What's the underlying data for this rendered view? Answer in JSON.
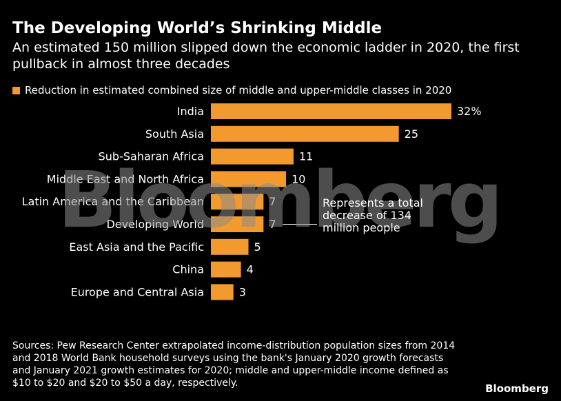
{
  "header": {
    "title": "The Developing World’s Shrinking Middle",
    "subtitle": "An estimated 150 million slipped down the economic ladder in 2020, the first pullback in almost three decades"
  },
  "chart_data": {
    "type": "bar",
    "orientation": "horizontal",
    "legend": "Reduction in estimated combined size of middle and upper-middle classes in 2020",
    "legend_placement": "top-left",
    "categories": [
      "India",
      "South Asia",
      "Sub-Saharan Africa",
      "Middle East and North Africa",
      "Latin America and the Caribbean",
      "Developing World",
      "East Asia and the Pacific",
      "China",
      "Europe and Central Asia"
    ],
    "values": [
      32,
      25,
      11,
      10,
      7,
      7,
      5,
      4,
      3
    ],
    "value_labels": [
      "32%",
      "25",
      "11",
      "10",
      "7",
      "7",
      "5",
      "4",
      "3"
    ],
    "bar_color": "#f29a2e",
    "xlim": [
      0,
      32
    ],
    "grid": false,
    "annotation": {
      "target_category": "Developing World",
      "text": "Represents a total decrease of 134 million people"
    }
  },
  "watermark": "Bloomberg",
  "footnote": "Sources: Pew Research Center extrapolated income-distribution population sizes from 2014 and 2018 World Bank household surveys using the bank's January 2020 growth forecasts and January 2021 growth estimates for 2020; middle and upper-middle income defined as $10 to $20 and $20 to $50 a day, respectively.",
  "brand": "Bloomberg"
}
